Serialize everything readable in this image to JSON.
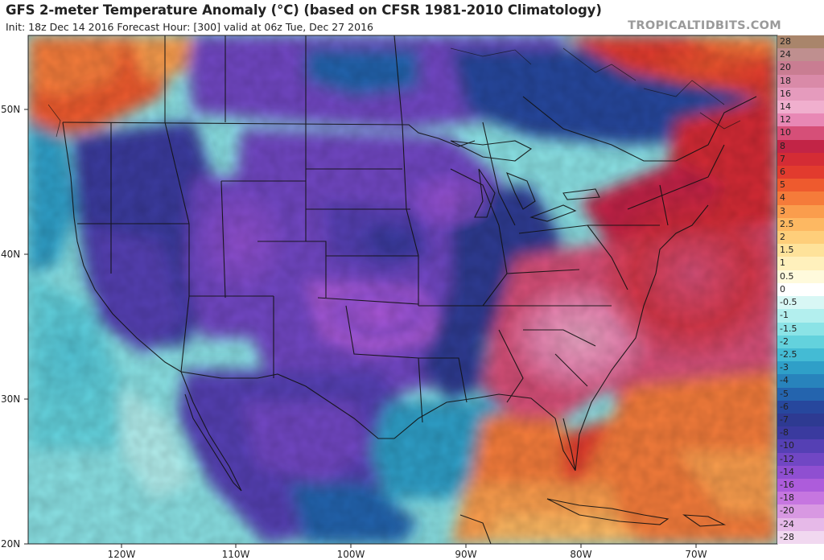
{
  "header": {
    "title": "GFS 2-meter Temperature Anomaly (°C) (based on CFSR 1981-2010 Climatology)",
    "subtitle": "Init: 18z Dec 14 2016   Forecast Hour: [300]   valid at 06z Tue, Dec 27 2016",
    "credit": "TROPICALTIDBITS.COM"
  },
  "map": {
    "lat_labels": [
      "50N",
      "40N",
      "30N",
      "20N"
    ],
    "lon_labels": [
      "120W",
      "110W",
      "100W",
      "90W",
      "80W",
      "70W"
    ]
  },
  "colorbar": {
    "levels": [
      {
        "label": "28",
        "color": "#a9856b"
      },
      {
        "label": "24",
        "color": "#bf8f8f"
      },
      {
        "label": "20",
        "color": "#c97d92"
      },
      {
        "label": "18",
        "color": "#d98aa8"
      },
      {
        "label": "16",
        "color": "#e59bbd"
      },
      {
        "label": "14",
        "color": "#f0afce"
      },
      {
        "label": "12",
        "color": "#e888b5"
      },
      {
        "label": "10",
        "color": "#d64f78"
      },
      {
        "label": "8",
        "color": "#c22446"
      },
      {
        "label": "7",
        "color": "#d42c35"
      },
      {
        "label": "6",
        "color": "#e23b2e"
      },
      {
        "label": "5",
        "color": "#ee5a2e"
      },
      {
        "label": "4",
        "color": "#f57b3a"
      },
      {
        "label": "3",
        "color": "#fa9d4d"
      },
      {
        "label": "2.5",
        "color": "#fdb862"
      },
      {
        "label": "2",
        "color": "#fece7a"
      },
      {
        "label": "1.5",
        "color": "#fee29a"
      },
      {
        "label": "1",
        "color": "#fff0bc"
      },
      {
        "label": "0.5",
        "color": "#fffadc"
      },
      {
        "label": "0",
        "color": "#ffffff"
      },
      {
        "label": "-0.5",
        "color": "#d8f7f5"
      },
      {
        "label": "-1",
        "color": "#b3efee"
      },
      {
        "label": "-1.5",
        "color": "#8be3e6"
      },
      {
        "label": "-2",
        "color": "#63d2dd"
      },
      {
        "label": "-2.5",
        "color": "#44bbd4"
      },
      {
        "label": "-3",
        "color": "#2f9fc8"
      },
      {
        "label": "-4",
        "color": "#2883bc"
      },
      {
        "label": "-5",
        "color": "#2464ae"
      },
      {
        "label": "-6",
        "color": "#27479d"
      },
      {
        "label": "-7",
        "color": "#2e3a92"
      },
      {
        "label": "-8",
        "color": "#3a3a9f"
      },
      {
        "label": "-10",
        "color": "#5540b4"
      },
      {
        "label": "-12",
        "color": "#7147c4"
      },
      {
        "label": "-14",
        "color": "#8f4fd1"
      },
      {
        "label": "-16",
        "color": "#ad5cdb"
      },
      {
        "label": "-18",
        "color": "#c676e0"
      },
      {
        "label": "-20",
        "color": "#d898e2"
      },
      {
        "label": "-24",
        "color": "#e6b9e8"
      },
      {
        "label": "-28",
        "color": "#f1d8f0"
      }
    ]
  }
}
